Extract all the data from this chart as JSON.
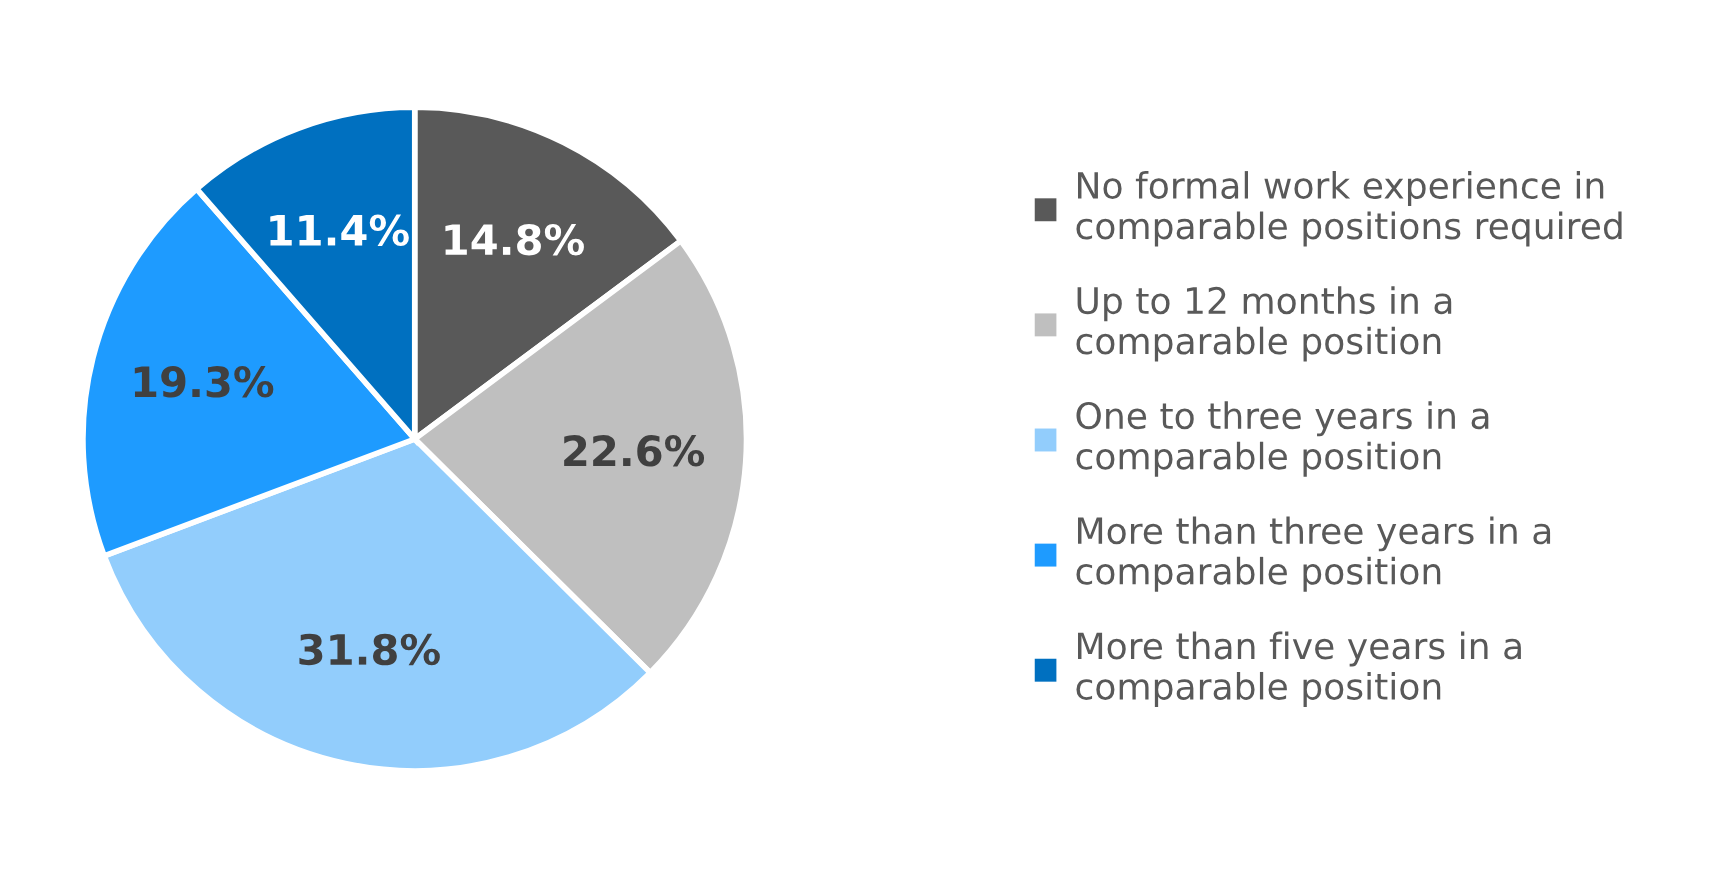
{
  "chart_data": {
    "type": "pie",
    "categories": [
      "No formal work experience in comparable positions required",
      "Up to 12 months in a comparable position",
      "One to three years in a comparable position",
      "More than three years in a comparable position",
      "More than five years in a comparable position"
    ],
    "values": [
      14.8,
      22.6,
      31.8,
      19.3,
      11.4
    ],
    "value_labels": [
      "14.8%",
      "22.6%",
      "31.8%",
      "19.3%",
      "11.4%"
    ],
    "colors": [
      "#595959",
      "#bfbfbf",
      "#92cdfc",
      "#1e9bff",
      "#0070c0"
    ],
    "legend": "right"
  }
}
